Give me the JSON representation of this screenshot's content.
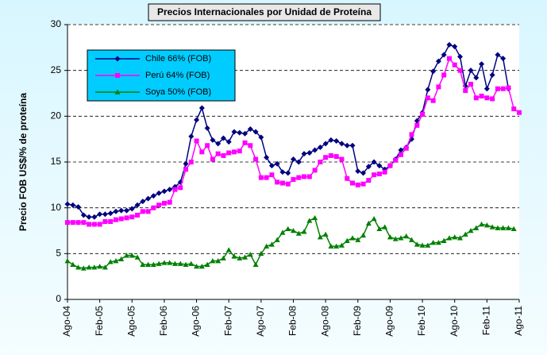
{
  "chart_data": {
    "type": "line",
    "title": "Precios Internacionales por Unidad de Proteína",
    "y_label": "Precio FOB US$/% de proteína",
    "categories": [
      "Ago-04",
      null,
      null,
      null,
      null,
      null,
      "Feb-05",
      null,
      null,
      null,
      null,
      null,
      "Ago-05",
      null,
      null,
      null,
      null,
      null,
      "Feb-06",
      null,
      null,
      null,
      null,
      null,
      "Ago-06",
      null,
      null,
      null,
      null,
      null,
      "Feb-07",
      null,
      null,
      null,
      null,
      null,
      "Ago-07",
      null,
      null,
      null,
      null,
      null,
      "Feb-08",
      null,
      null,
      null,
      null,
      null,
      "Ago-08",
      null,
      null,
      null,
      null,
      null,
      "Feb-09",
      null,
      null,
      null,
      null,
      null,
      "Ago-09",
      null,
      null,
      null,
      null,
      null,
      "Feb-10",
      null,
      null,
      null,
      null,
      null,
      "Ago-10",
      null,
      null,
      null,
      null,
      null,
      "Feb-11",
      null,
      null,
      null,
      null,
      null,
      "Ago-11"
    ],
    "series": [
      {
        "name": "Chile 66% (FOB)",
        "color": "#000080",
        "marker": "diamond",
        "values": [
          10.4,
          10.3,
          10.1,
          9.2,
          9.0,
          9.0,
          9.3,
          9.3,
          9.4,
          9.6,
          9.7,
          9.7,
          9.9,
          10.3,
          10.7,
          11.0,
          11.3,
          11.6,
          11.8,
          12.0,
          12.3,
          12.8,
          14.8,
          17.8,
          19.6,
          20.9,
          18.7,
          17.4,
          17.0,
          17.6,
          17.2,
          18.3,
          18.2,
          18.1,
          18.6,
          18.3,
          17.7,
          15.5,
          14.6,
          14.8,
          13.9,
          13.8,
          15.3,
          15.0,
          15.9,
          16.0,
          16.3,
          16.6,
          17.0,
          17.4,
          17.3,
          17.0,
          16.8,
          16.8,
          14.0,
          13.8,
          14.5,
          15.0,
          14.6,
          14.2,
          14.6,
          15.3,
          16.3,
          16.6,
          17.5,
          19.5,
          20.4,
          22.9,
          24.9,
          26.0,
          26.7,
          27.8,
          27.6,
          26.5,
          23.3,
          25.0,
          24.2,
          25.7,
          23.0,
          24.5,
          26.7,
          26.3,
          23.0,
          null,
          null
        ]
      },
      {
        "name": "Perú 64% (FOB)",
        "color": "#ff00ff",
        "marker": "square",
        "values": [
          8.4,
          8.4,
          8.4,
          8.4,
          8.2,
          8.2,
          8.2,
          8.5,
          8.5,
          8.7,
          8.8,
          8.9,
          9.0,
          9.2,
          9.6,
          9.6,
          10.0,
          10.3,
          10.5,
          10.6,
          12.0,
          12.2,
          14.2,
          15.0,
          17.3,
          16.1,
          16.8,
          15.3,
          15.9,
          15.7,
          16.0,
          16.1,
          16.2,
          17.1,
          16.8,
          15.3,
          13.3,
          13.3,
          13.6,
          12.8,
          12.7,
          12.6,
          13.1,
          13.3,
          13.4,
          13.4,
          14.1,
          15.0,
          15.5,
          15.7,
          15.6,
          15.3,
          13.2,
          12.7,
          12.5,
          12.6,
          13.0,
          13.6,
          13.7,
          13.9,
          14.6,
          15.2,
          15.8,
          16.5,
          18.0,
          19.0,
          20.2,
          22.0,
          21.7,
          23.2,
          24.5,
          26.3,
          25.6,
          25.0,
          22.8,
          23.5,
          22.0,
          22.2,
          22.0,
          21.9,
          23.0,
          23.0,
          23.1,
          20.8,
          20.4
        ]
      },
      {
        "name": "Soya 50% (FOB)",
        "color": "#008000",
        "marker": "triangle",
        "values": [
          4.2,
          3.8,
          3.5,
          3.4,
          3.5,
          3.5,
          3.6,
          3.5,
          4.1,
          4.2,
          4.4,
          4.8,
          4.8,
          4.6,
          3.8,
          3.8,
          3.8,
          3.9,
          4.0,
          4.0,
          3.9,
          3.9,
          3.8,
          3.9,
          3.6,
          3.6,
          3.8,
          4.2,
          4.2,
          4.5,
          5.4,
          4.7,
          4.5,
          4.6,
          4.9,
          3.8,
          5.0,
          5.8,
          6.0,
          6.5,
          7.3,
          7.7,
          7.5,
          7.2,
          7.4,
          8.6,
          8.9,
          6.8,
          7.1,
          5.8,
          5.8,
          5.9,
          6.4,
          6.7,
          6.5,
          7.0,
          8.3,
          8.8,
          7.7,
          7.9,
          6.8,
          6.6,
          6.7,
          6.9,
          6.5,
          6.0,
          5.9,
          5.9,
          6.2,
          6.2,
          6.4,
          6.7,
          6.8,
          6.7,
          7.1,
          7.5,
          7.8,
          8.2,
          8.1,
          7.9,
          7.8,
          7.8,
          7.8,
          7.7,
          null
        ]
      }
    ],
    "ylim": [
      0,
      30
    ],
    "yticks": [
      0,
      5,
      10,
      15,
      20,
      25,
      30
    ],
    "grid": true,
    "legend": "upper left"
  }
}
